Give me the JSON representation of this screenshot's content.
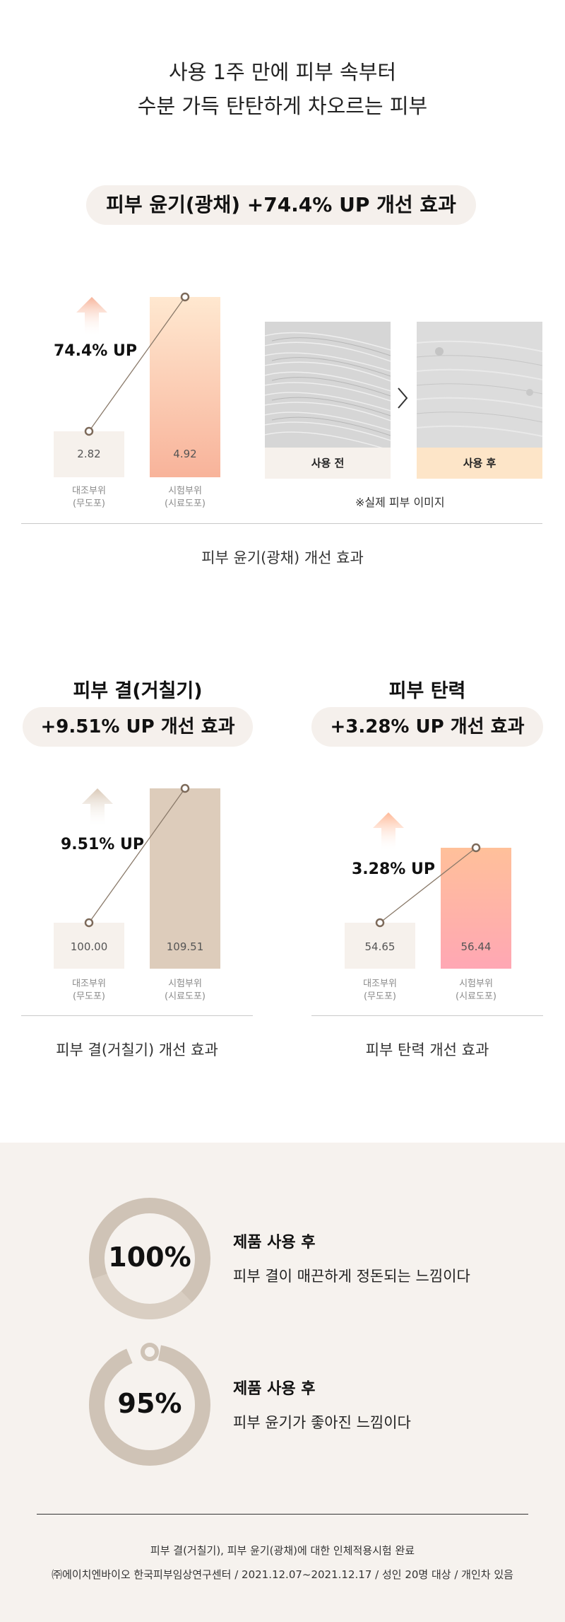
{
  "headline": {
    "line1": "사용 1주 만에 피부 속부터",
    "line2": "수분 가득 탄탄하게 차오르는 피부"
  },
  "glow": {
    "pill": "피부 윤기(광채) +74.4% UP 개선 효과",
    "up_label": "74.4% UP",
    "control_value": "2.82",
    "test_value": "4.92",
    "control_label_1": "대조부위",
    "control_label_2": "(무도포)",
    "test_label_1": "시험부위",
    "test_label_2": "(시료도포)",
    "before_label": "사용 전",
    "after_label": "사용 후",
    "note": "※실제 피부 이미지",
    "caption": "피부 윤기(광채) 개선 효과"
  },
  "texture": {
    "title": "피부 결(거칠기)",
    "pill": "+9.51% UP 개선 효과",
    "up_label": "9.51% UP",
    "control_value": "100.00",
    "test_value": "109.51",
    "control_label_1": "대조부위",
    "control_label_2": "(무도포)",
    "test_label_1": "시험부위",
    "test_label_2": "(시료도포)",
    "caption": "피부 결(거칠기) 개선 효과"
  },
  "elasticity": {
    "title": "피부 탄력",
    "pill": "+3.28% UP 개선 효과",
    "up_label": "3.28% UP",
    "control_value": "54.65",
    "test_value": "56.44",
    "control_label_1": "대조부위",
    "control_label_2": "(무도포)",
    "test_label_1": "시험부위",
    "test_label_2": "(시료도포)",
    "caption": "피부 탄력 개선 효과"
  },
  "stats": [
    {
      "percent": "100%",
      "value": 1.0,
      "head": "제품 사용 후",
      "desc": "피부 결이 매끈하게 정돈되는 느낌이다"
    },
    {
      "percent": "95%",
      "value": 0.95,
      "head": "제품 사용 후",
      "desc": "피부 윤기가 좋아진 느낌이다"
    }
  ],
  "footer": {
    "line1": "피부 결(거칠기), 피부 윤기(광채)에 대한 인체적용시험 완료",
    "line2": "㈜에이치엔바이오 한국피부임상연구센터 / 2021.12.07~2021.12.17 / 성인 20명 대상 / 개인차 있음"
  },
  "colors": {
    "pill_bg": "#f5f0ec",
    "control_bar": "#f6f1ec",
    "glow_bar_top": "#ffe8d0",
    "glow_bar_bottom": "#f8b39a",
    "texture_bar": "#ddccbb",
    "elastic_bar_top": "#ffc09a",
    "elastic_bar_bottom": "#ffa7b4",
    "after_label_bg": "#fde5c8",
    "ring": "#cfc3b6",
    "section_bg": "#f6f2ee"
  }
}
